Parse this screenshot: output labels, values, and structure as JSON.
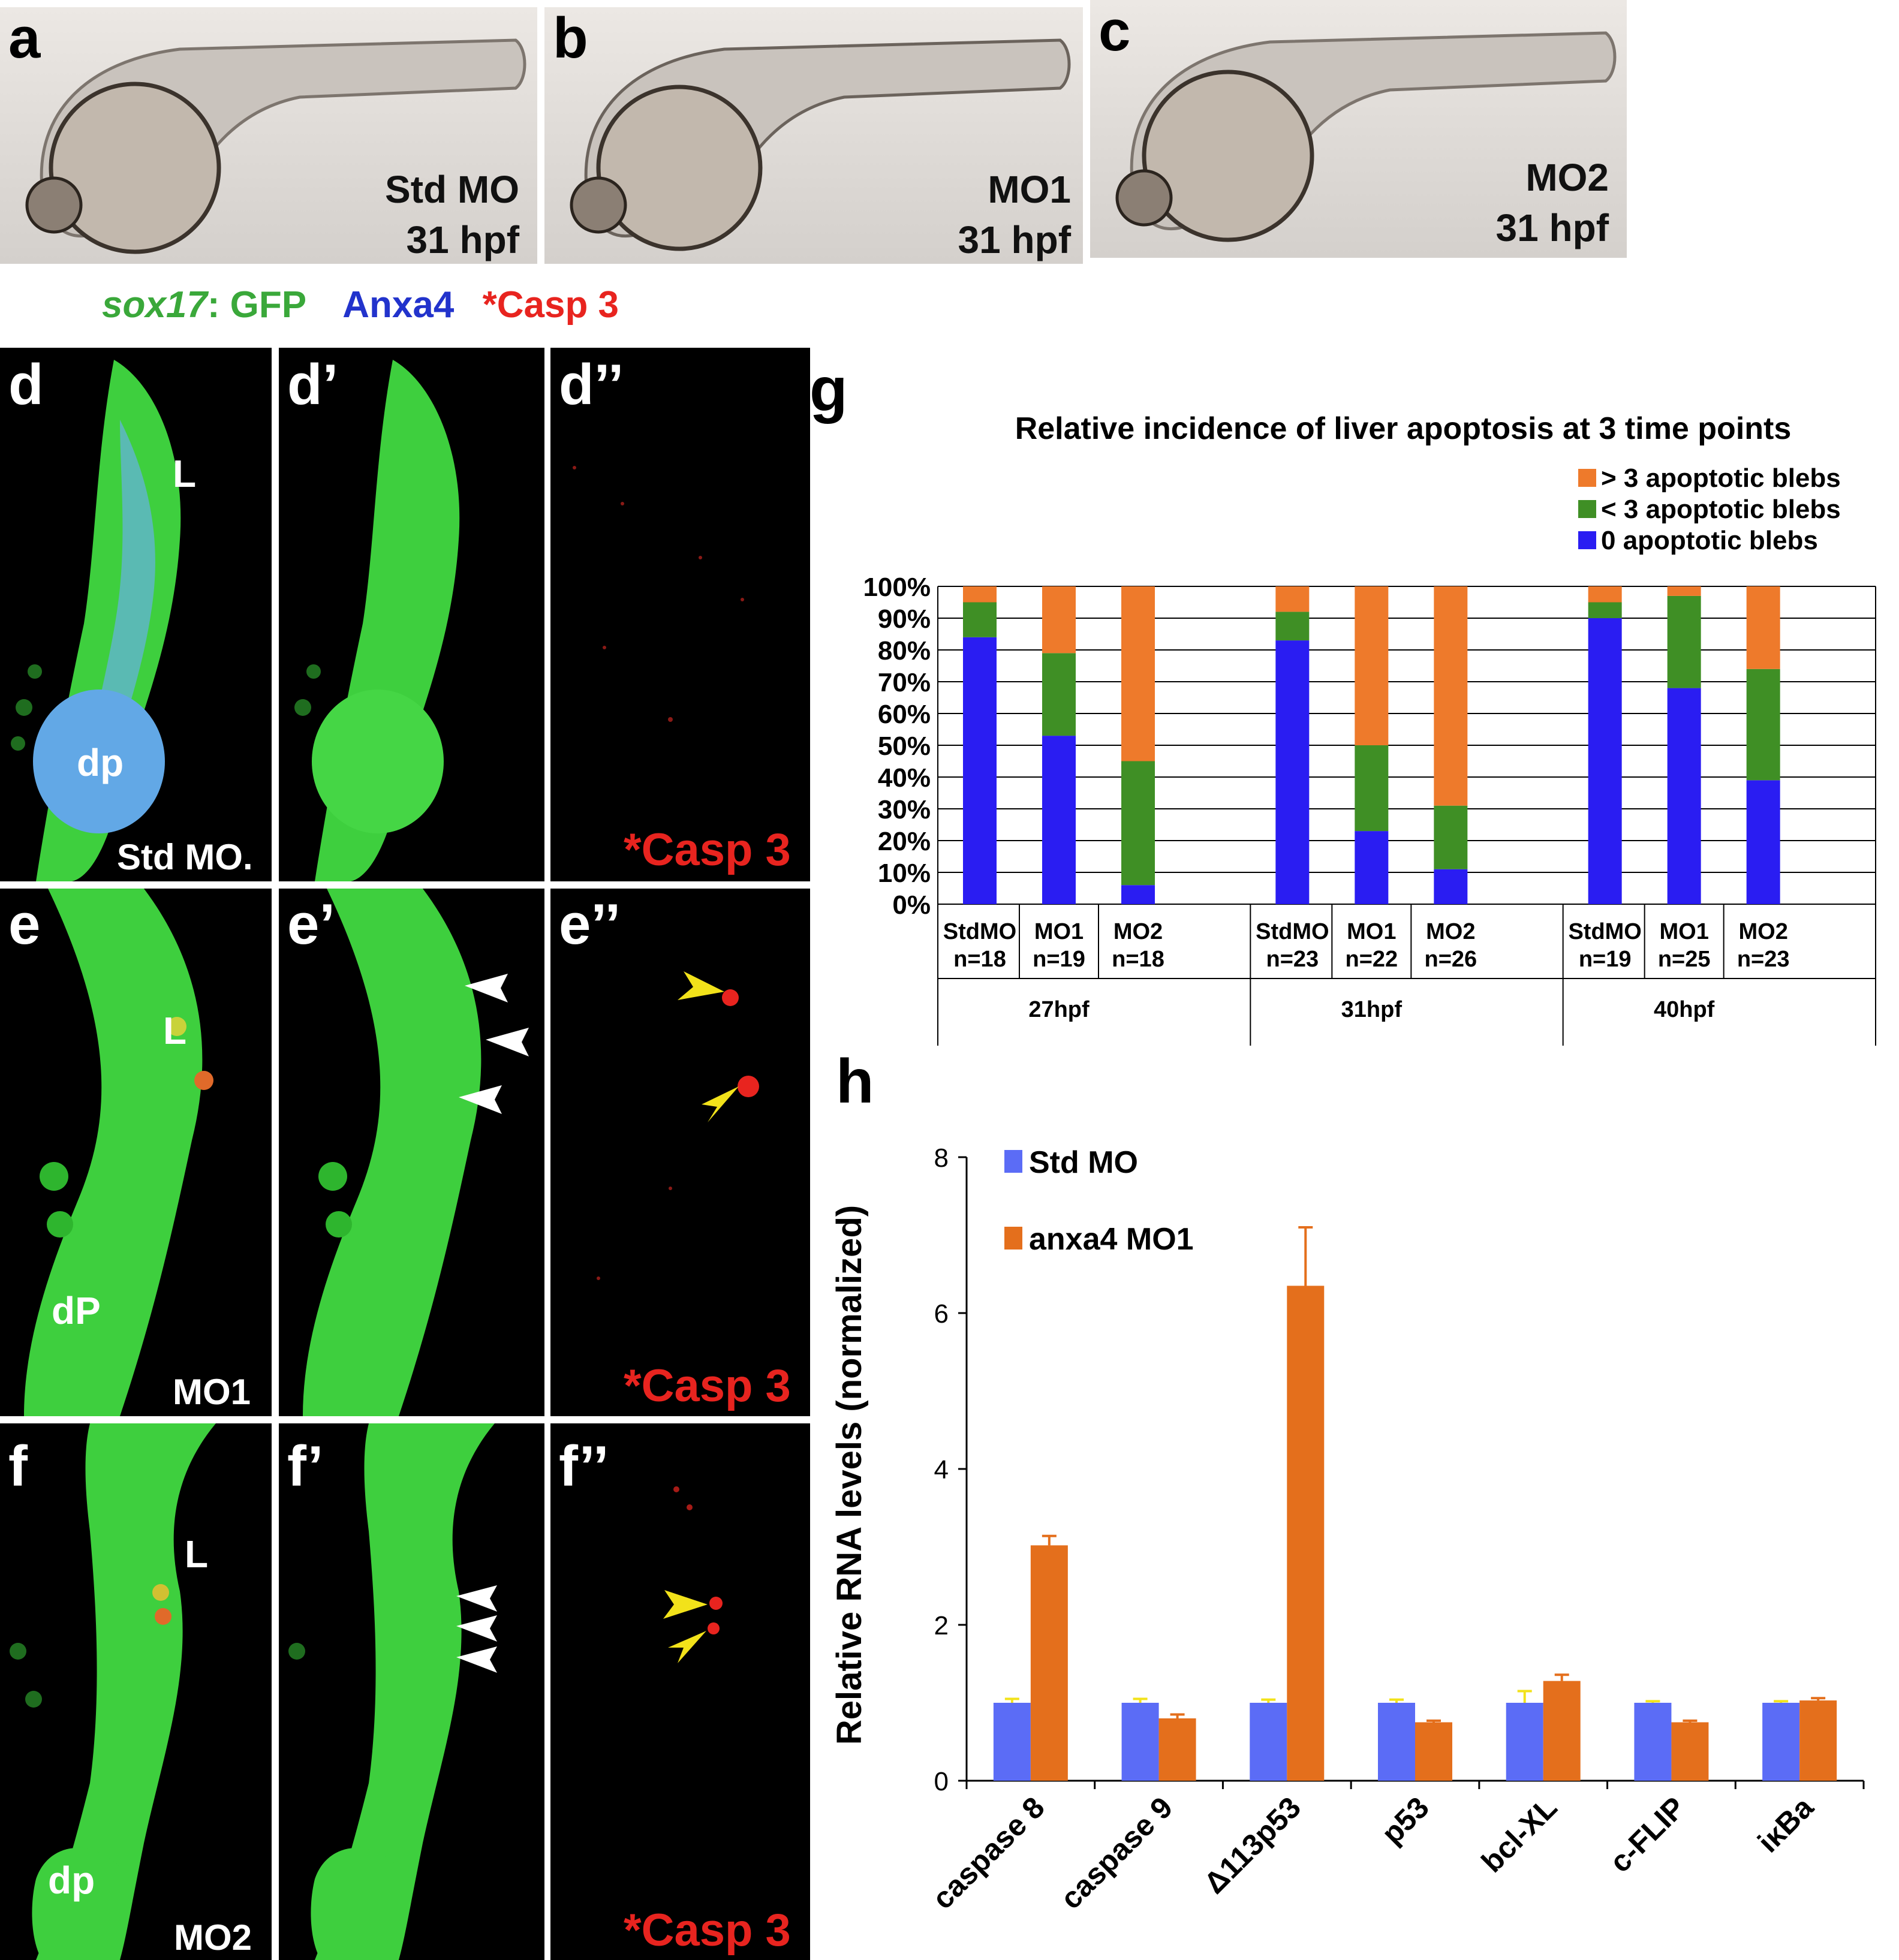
{
  "panels_top": [
    {
      "letter": "a",
      "condition": "Std MO",
      "time": "31 hpf"
    },
    {
      "letter": "b",
      "condition": "MO1",
      "time": "31 hpf"
    },
    {
      "letter": "c",
      "condition": "MO2",
      "time": "31 hpf"
    }
  ],
  "stain_legend": {
    "gene": "sox17",
    "gfp_suffix": ": GFP",
    "anxa4": "Anxa4",
    "casp": "*Casp 3"
  },
  "fluor_rows": [
    {
      "letters": [
        "d",
        "d’",
        "d’’"
      ],
      "condition": "Std MO.",
      "liver": "L",
      "pancreas": "dp",
      "casp_label": "*Casp 3"
    },
    {
      "letters": [
        "e",
        "e’",
        "e’’"
      ],
      "condition": "MO1",
      "liver": "L",
      "pancreas": "dP",
      "casp_label": "*Casp 3"
    },
    {
      "letters": [
        "f",
        "f’",
        "f’’"
      ],
      "condition": "MO2",
      "liver": "L",
      "pancreas": "dp",
      "casp_label": "*Casp 3"
    }
  ],
  "colors": {
    "gfp": "#33d63a",
    "anxa4": "#2233cc",
    "casp": "#e8241f",
    "orange": "#ee7a2b",
    "green": "#3f8f25",
    "blue": "#2a1df2",
    "std_blue": "#5b6cf6",
    "anxa_orange": "#e46f1c",
    "arrow_white": "#ffffff",
    "arrow_yellow": "#f2e21a"
  },
  "chart_data": [
    {
      "panel": "g",
      "type": "bar",
      "stacked": true,
      "title": "Relative incidence of liver apoptosis at 3 time points",
      "ylim": [
        0,
        100
      ],
      "yticks": [
        "0%",
        "10%",
        "20%",
        "30%",
        "40%",
        "50%",
        "60%",
        "70%",
        "80%",
        "90%",
        "100%"
      ],
      "groups": [
        {
          "label": "27hpf",
          "bars": [
            {
              "name": "StdMO",
              "n": "n=18"
            },
            {
              "name": "MO1",
              "n": "n=19"
            },
            {
              "name": "MO2",
              "n": "n=18"
            }
          ]
        },
        {
          "label": "31hpf",
          "bars": [
            {
              "name": "StdMO",
              "n": "n=23"
            },
            {
              "name": "MO1",
              "n": "n=22"
            },
            {
              "name": "MO2",
              "n": "n=26"
            }
          ]
        },
        {
          "label": "40hpf",
          "bars": [
            {
              "name": "StdMO",
              "n": "n=19"
            },
            {
              "name": "MO1",
              "n": "n=25"
            },
            {
              "name": "MO2",
              "n": "n=23"
            }
          ]
        }
      ],
      "series": [
        {
          "name": "0 apoptotic blebs",
          "color": "#2a1df2",
          "values": [
            84,
            53,
            6,
            83,
            23,
            11,
            90,
            68,
            39
          ]
        },
        {
          "name": "< 3 apoptotic blebs",
          "color": "#3f8f25",
          "values": [
            11,
            26,
            39,
            9,
            27,
            20,
            5,
            29,
            35
          ]
        },
        {
          "name": "> 3 apoptotic blebs",
          "color": "#ee7a2b",
          "values": [
            5,
            21,
            55,
            8,
            50,
            69,
            5,
            3,
            26
          ]
        }
      ],
      "legend_position": "top-right"
    },
    {
      "panel": "h",
      "type": "bar",
      "ylabel": "Relative RNA levels (normalized)",
      "ylim": [
        0,
        8
      ],
      "yticks": [
        "0",
        "2",
        "4",
        "6",
        "8"
      ],
      "categories": [
        "caspase 8",
        "caspase 9",
        "Δ113p53",
        "p53",
        "bcl-XL",
        "c-FLIP",
        "iκBa"
      ],
      "series": [
        {
          "name": "Std MO",
          "color": "#5b6cf6",
          "values": [
            1,
            1,
            1,
            1,
            1,
            1,
            1
          ],
          "errors": [
            0.05,
            0.05,
            0.04,
            0.04,
            0.15,
            0.02,
            0.02
          ]
        },
        {
          "name": "anxa4 MO1",
          "color": "#e46f1c",
          "values": [
            3.02,
            0.8,
            6.35,
            0.75,
            1.28,
            0.75,
            1.03
          ],
          "errors": [
            0.12,
            0.05,
            0.75,
            0.02,
            0.08,
            0.02,
            0.03
          ]
        }
      ],
      "legend_position": "top-left"
    }
  ]
}
